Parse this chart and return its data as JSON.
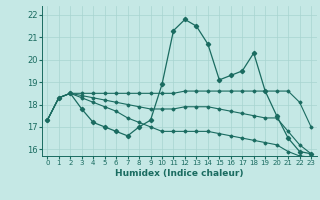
{
  "xlabel": "Humidex (Indice chaleur)",
  "bg_color": "#c5e8e5",
  "grid_color": "#a8d4d0",
  "line_color": "#1a6b60",
  "xlim": [
    -0.5,
    23.5
  ],
  "ylim": [
    15.7,
    22.4
  ],
  "yticks": [
    16,
    17,
    18,
    19,
    20,
    21,
    22
  ],
  "xticks": [
    0,
    1,
    2,
    3,
    4,
    5,
    6,
    7,
    8,
    9,
    10,
    11,
    12,
    13,
    14,
    15,
    16,
    17,
    18,
    19,
    20,
    21,
    22,
    23
  ],
  "series_main": [
    17.3,
    18.3,
    18.5,
    17.8,
    17.2,
    17.0,
    16.8,
    16.6,
    17.0,
    17.3,
    18.9,
    21.3,
    21.8,
    21.5,
    20.7,
    19.1,
    19.3,
    19.5,
    20.3,
    18.6,
    17.5,
    16.5,
    15.9,
    15.8
  ],
  "series_flat": [
    [
      17.3,
      18.3,
      18.5,
      18.5,
      18.5,
      18.5,
      18.5,
      18.5,
      18.5,
      18.5,
      18.5,
      18.5,
      18.6,
      18.6,
      18.6,
      18.6,
      18.6,
      18.6,
      18.6,
      18.6,
      18.6,
      18.6,
      18.1,
      17.0
    ],
    [
      17.3,
      18.3,
      18.5,
      18.4,
      18.3,
      18.2,
      18.1,
      18.0,
      17.9,
      17.8,
      17.8,
      17.8,
      17.9,
      17.9,
      17.9,
      17.8,
      17.7,
      17.6,
      17.5,
      17.4,
      17.4,
      16.8,
      16.2,
      15.8
    ],
    [
      17.3,
      18.3,
      18.5,
      18.3,
      18.1,
      17.9,
      17.7,
      17.4,
      17.2,
      17.0,
      16.8,
      16.8,
      16.8,
      16.8,
      16.8,
      16.7,
      16.6,
      16.5,
      16.4,
      16.3,
      16.2,
      15.9,
      15.7,
      15.65
    ]
  ]
}
